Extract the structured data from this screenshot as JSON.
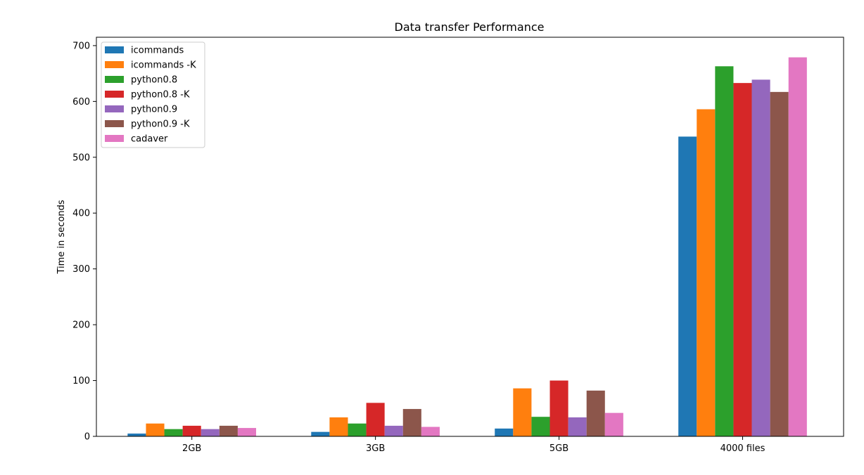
{
  "chart_data": {
    "type": "bar",
    "title": "Data transfer Performance",
    "xlabel": "",
    "ylabel": "Time in seconds",
    "ylim": [
      0,
      715
    ],
    "yticks": [
      0,
      100,
      200,
      300,
      400,
      500,
      600,
      700
    ],
    "grid": false,
    "legend_position": "top-left",
    "categories": [
      "2GB",
      "3GB",
      "5GB",
      "4000 files"
    ],
    "series": [
      {
        "name": "icommands",
        "color": "#1f77b4",
        "values": [
          5,
          8,
          14,
          537
        ]
      },
      {
        "name": "icommands -K",
        "color": "#ff7f0e",
        "values": [
          23,
          34,
          86,
          586
        ]
      },
      {
        "name": "python0.8",
        "color": "#2ca02c",
        "values": [
          13,
          23,
          35,
          663
        ]
      },
      {
        "name": "python0.8 -K",
        "color": "#d62728",
        "values": [
          19,
          60,
          100,
          633
        ]
      },
      {
        "name": "python0.9",
        "color": "#9467bd",
        "values": [
          13,
          19,
          34,
          639
        ]
      },
      {
        "name": "python0.9 -K",
        "color": "#8c564b",
        "values": [
          19,
          49,
          82,
          617
        ]
      },
      {
        "name": "cadaver",
        "color": "#e377c2",
        "values": [
          15,
          17,
          42,
          679
        ]
      }
    ]
  }
}
